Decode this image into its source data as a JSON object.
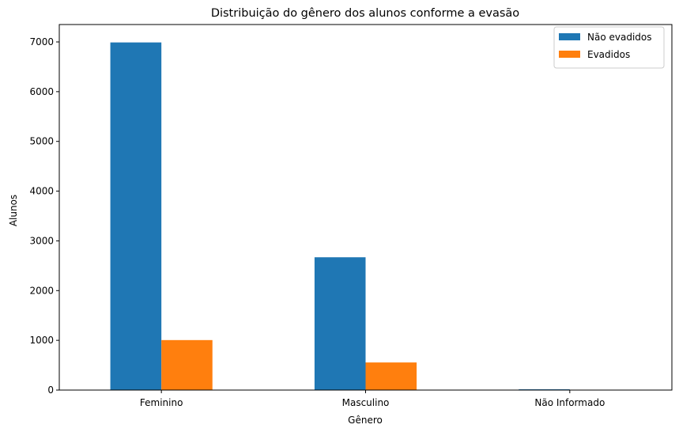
{
  "chart_data": {
    "type": "bar",
    "title": "Distribuição do gênero dos alunos conforme a evasão",
    "xlabel": "Gênero",
    "ylabel": "Alunos",
    "categories": [
      "Feminino",
      "Masculino",
      "Não Informado"
    ],
    "series": [
      {
        "name": "Não evadidos",
        "values": [
          6990,
          2670,
          15
        ],
        "color": "#1f77b4"
      },
      {
        "name": "Evadidos",
        "values": [
          1005,
          555,
          3
        ],
        "color": "#ff7f0e"
      }
    ],
    "ylim": [
      0,
      7350
    ],
    "yticks": [
      0,
      1000,
      2000,
      3000,
      4000,
      5000,
      6000,
      7000
    ],
    "grid": false,
    "legend_position": "top-right"
  }
}
